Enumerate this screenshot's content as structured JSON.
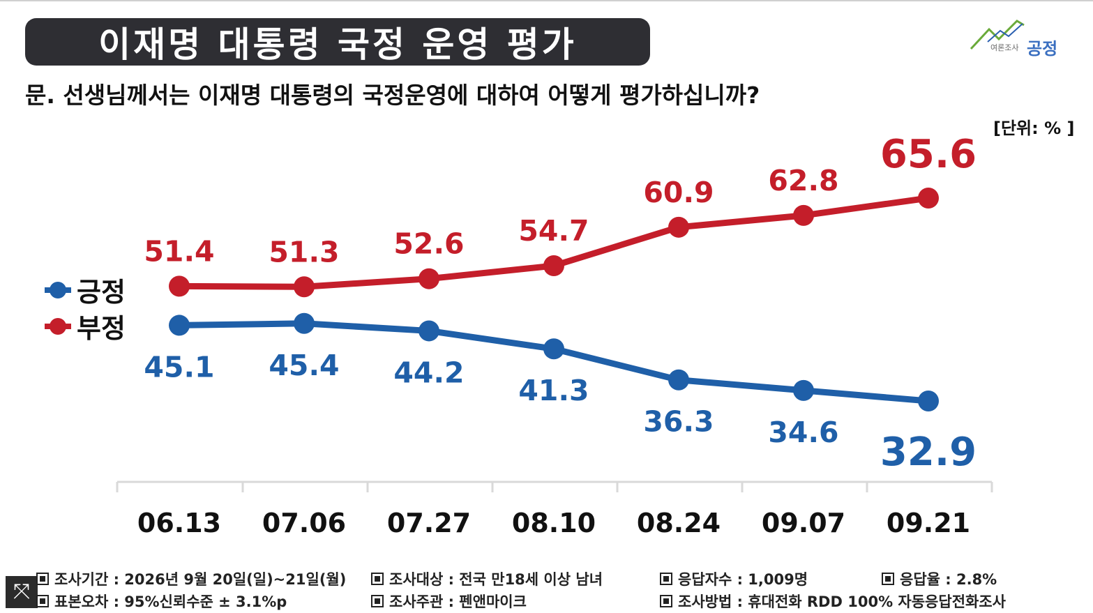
{
  "title": "이재명 대통령 국정 운영 평가",
  "logo": {
    "small": "여론조사",
    "big": "공정",
    "accent": "#3a6fc0"
  },
  "question": "문. 선생님께서는 이재명 대통령의 국정운영에 대하여 어떻게 평가하십니까?",
  "unit": "[단위: % ]",
  "chart_data": {
    "type": "line",
    "categories": [
      "06.13",
      "07.06",
      "07.27",
      "08.10",
      "08.24",
      "09.07",
      "09.21"
    ],
    "series": [
      {
        "name": "부정",
        "color": "#c41e2a",
        "values": [
          51.4,
          51.3,
          52.6,
          54.7,
          60.9,
          62.8,
          65.6
        ]
      },
      {
        "name": "긍정",
        "color": "#1f5fa8",
        "values": [
          45.1,
          45.4,
          44.2,
          41.3,
          36.3,
          34.6,
          32.9
        ]
      }
    ],
    "legend": {
      "placement": "left",
      "items": [
        "긍정",
        "부정"
      ]
    },
    "grid": false,
    "ylabel": "",
    "xlabel": ""
  },
  "footer": {
    "period": "조사기간 : 2026년 9월 20일(일)~21일(월)",
    "target": "조사대상 : 전국 만18세 이상 남녀",
    "respondents": "응답자수 : 1,009명",
    "response_rate": "응답율 : 2.8%",
    "error": "표본오차 : 95%신뢰수준 ± 3.1%p",
    "sponsor": "조사주관 : 펜앤마이크",
    "method": "조사방법 : 휴대전화 RDD 100% 자동응답전화조사"
  }
}
